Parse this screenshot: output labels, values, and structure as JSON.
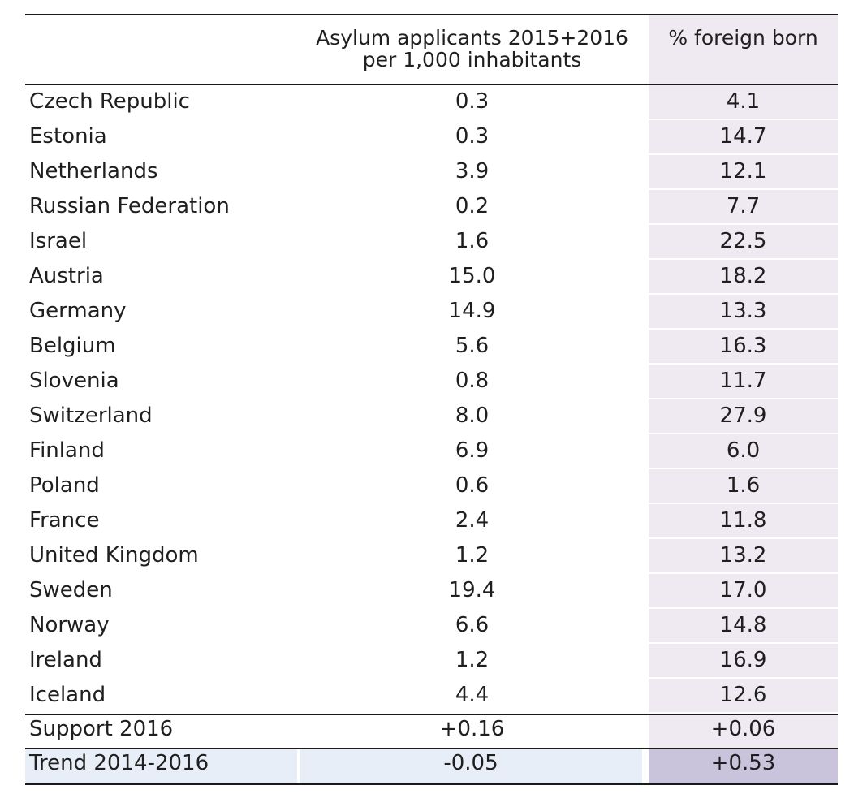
{
  "table": {
    "headers": {
      "country": "",
      "asylum_line1": "Asylum applicants 2015+2016",
      "asylum_line2": "per 1,000 inhabitants",
      "foreign_born": "% foreign born"
    },
    "rows": [
      {
        "country": "Czech Republic",
        "asylum": "0.3",
        "foreign": "4.1"
      },
      {
        "country": "Estonia",
        "asylum": "0.3",
        "foreign": "14.7"
      },
      {
        "country": "Netherlands",
        "asylum": "3.9",
        "foreign": "12.1"
      },
      {
        "country": "Russian Federation",
        "asylum": "0.2",
        "foreign": "7.7"
      },
      {
        "country": "Israel",
        "asylum": "1.6",
        "foreign": "22.5"
      },
      {
        "country": "Austria",
        "asylum": "15.0",
        "foreign": "18.2"
      },
      {
        "country": "Germany",
        "asylum": "14.9",
        "foreign": "13.3"
      },
      {
        "country": "Belgium",
        "asylum": "5.6",
        "foreign": "16.3"
      },
      {
        "country": "Slovenia",
        "asylum": "0.8",
        "foreign": "11.7"
      },
      {
        "country": "Switzerland",
        "asylum": "8.0",
        "foreign": "27.9"
      },
      {
        "country": "Finland",
        "asylum": "6.9",
        "foreign": "6.0"
      },
      {
        "country": "Poland",
        "asylum": "0.6",
        "foreign": "1.6"
      },
      {
        "country": "France",
        "asylum": "2.4",
        "foreign": "11.8"
      },
      {
        "country": "United Kingdom",
        "asylum": "1.2",
        "foreign": "13.2"
      },
      {
        "country": "Sweden",
        "asylum": "19.4",
        "foreign": "17.0"
      },
      {
        "country": "Norway",
        "asylum": "6.6",
        "foreign": "14.8"
      },
      {
        "country": "Ireland",
        "asylum": "1.2",
        "foreign": "16.9"
      },
      {
        "country": "Iceland",
        "asylum": "4.4",
        "foreign": "12.6"
      }
    ],
    "support": {
      "label": "Support 2016",
      "asylum": "+0.16",
      "foreign": "+0.06"
    },
    "trend": {
      "label": "Trend 2014-2016",
      "asylum": "-0.05",
      "foreign": "+0.53"
    }
  },
  "colors": {
    "foreign_column_bg": "#efe9f1",
    "trend_row_bg": "#e7eef7",
    "trend_foreign_bg": "#c9c4dc",
    "rule": "#1a1a1a"
  }
}
